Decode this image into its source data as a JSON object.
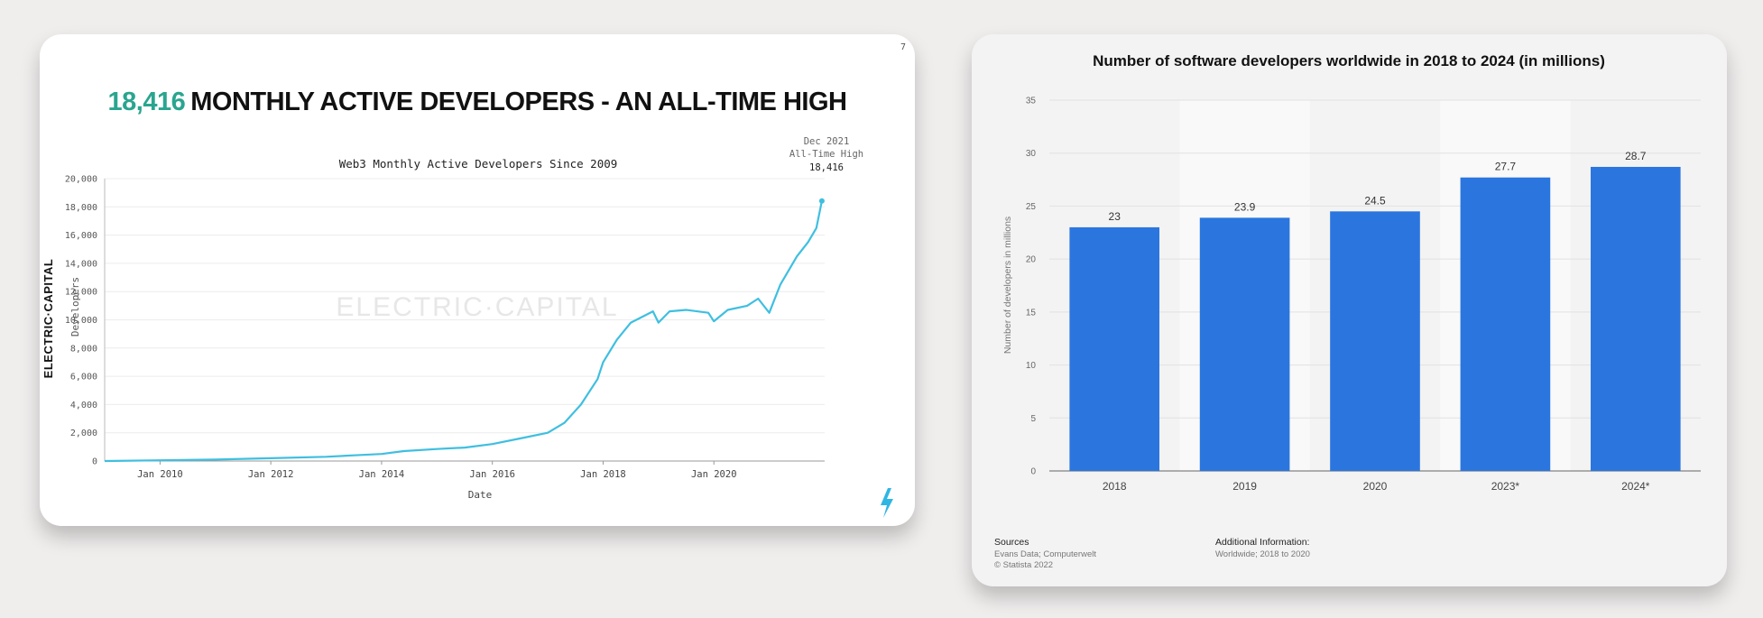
{
  "left_card": {
    "page_number": "7",
    "headline_number": "18,416",
    "headline_text": "MONTHLY ACTIVE DEVELOPERS - AN ALL-TIME HIGH",
    "brand": "ELECTRIC·CAPITAL",
    "watermark": "ELECTRIC·CAPITAL",
    "annotation": [
      "Dec 2021",
      "All-Time High",
      "18,416"
    ],
    "accent_color": "#2aa58f",
    "line_color": "#3fbfe0"
  },
  "right_card": {
    "sources_label": "Sources",
    "sources_lines": [
      "Evans Data; Computerwelt",
      "© Statista 2022"
    ],
    "additional_label": "Additional Information:",
    "additional_text": "Worldwide; 2018 to 2020",
    "bar_color": "#2b76de"
  },
  "chart_data": [
    {
      "type": "line",
      "title": "Web3 Monthly Active Developers Since 2009",
      "xlabel": "Date",
      "ylabel": "Developers",
      "x_ticks": [
        "Jan 2010",
        "Jan 2012",
        "Jan 2014",
        "Jan 2016",
        "Jan 2018",
        "Jan 2020"
      ],
      "y_ticks": [
        "0",
        "2,000",
        "4,000",
        "6,000",
        "8,000",
        "10,000",
        "12,000",
        "14,000",
        "16,000",
        "18,000",
        "20,000"
      ],
      "ylim": [
        0,
        20000
      ],
      "xlim": [
        2009.0,
        2022.0
      ],
      "grid": true,
      "series": [
        {
          "x": [
            2009.0,
            2010.0,
            2011.0,
            2012.0,
            2013.0,
            2013.5,
            2014.0,
            2014.4,
            2015.0,
            2015.5,
            2016.0,
            2016.5,
            2017.0,
            2017.3,
            2017.6,
            2017.9,
            2018.0,
            2018.25,
            2018.5,
            2018.9,
            2019.0,
            2019.2,
            2019.5,
            2019.9,
            2020.0,
            2020.25,
            2020.6,
            2020.8,
            2021.0,
            2021.2,
            2021.5,
            2021.7,
            2021.85,
            2021.95
          ],
          "y": [
            0,
            50,
            100,
            200,
            300,
            400,
            500,
            700,
            850,
            950,
            1200,
            1600,
            2000,
            2700,
            4000,
            5800,
            7000,
            8600,
            9800,
            10600,
            9800,
            10600,
            10700,
            10500,
            9900,
            10700,
            11000,
            11500,
            10500,
            12500,
            14500,
            15500,
            16500,
            18416
          ]
        }
      ],
      "annotation": "Dec 2021 All-Time High 18,416"
    },
    {
      "type": "bar",
      "title": "Number of software developers worldwide in 2018 to 2024 (in millions)",
      "ylabel": "Number of developers in millions",
      "categories": [
        "2018",
        "2019",
        "2020",
        "2023*",
        "2024*"
      ],
      "values": [
        23,
        23.9,
        24.5,
        27.7,
        28.7
      ],
      "value_labels": [
        "23",
        "23.9",
        "24.5",
        "27.7",
        "28.7"
      ],
      "y_ticks": [
        "0",
        "5",
        "10",
        "15",
        "20",
        "25",
        "30",
        "35"
      ],
      "ylim": [
        0,
        35
      ],
      "grid": true
    }
  ]
}
